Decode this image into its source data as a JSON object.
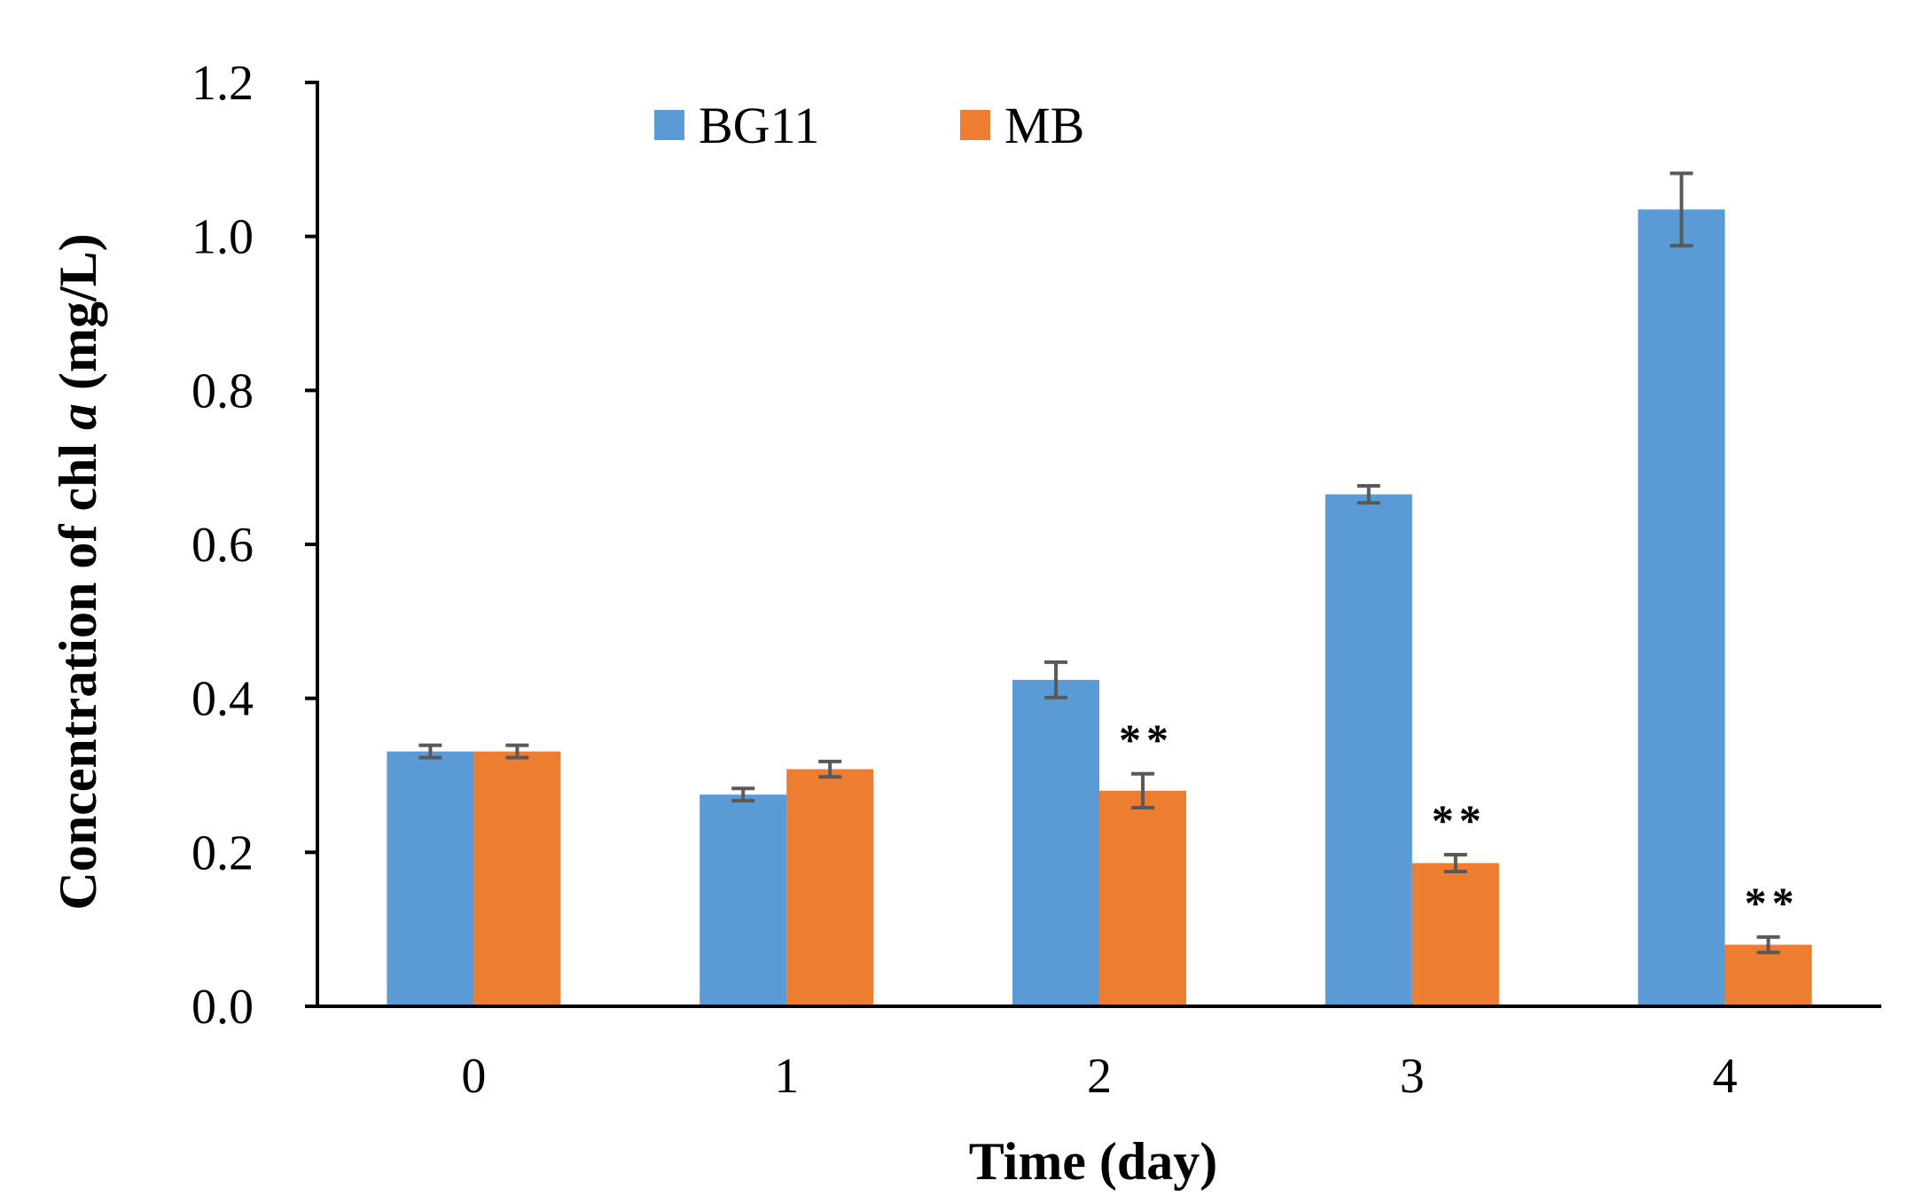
{
  "chart_data": {
    "type": "bar",
    "title": "",
    "xlabel": "Time (day)",
    "ylabel_parts": [
      "Concentration of chl ",
      "a",
      " (mg/L)"
    ],
    "categories": [
      "0",
      "1",
      "2",
      "3",
      "4"
    ],
    "ylim": [
      0,
      1.2
    ],
    "yticks": [
      "0.0",
      "0.2",
      "0.4",
      "0.6",
      "0.8",
      "1.0",
      "1.2"
    ],
    "ytick_values": [
      0,
      0.2,
      0.4,
      0.6,
      0.8,
      1.0,
      1.2
    ],
    "grid": false,
    "legend_position": "top",
    "series": [
      {
        "name": "BG11",
        "color": "#5B9BD5",
        "values": [
          0.331,
          0.275,
          0.424,
          0.665,
          1.035
        ],
        "errors": [
          0.008,
          0.008,
          0.023,
          0.011,
          0.047
        ]
      },
      {
        "name": "MB",
        "color": "#ED7D31",
        "values": [
          0.331,
          0.308,
          0.28,
          0.186,
          0.08
        ],
        "errors": [
          0.008,
          0.01,
          0.022,
          0.011,
          0.01
        ]
      }
    ],
    "annotations": [
      {
        "category": "2",
        "series": "MB",
        "text": "**"
      },
      {
        "category": "3",
        "series": "MB",
        "text": "**"
      },
      {
        "category": "4",
        "series": "MB",
        "text": "**"
      }
    ],
    "error_color": "#595959",
    "axis_color": "#000000"
  }
}
